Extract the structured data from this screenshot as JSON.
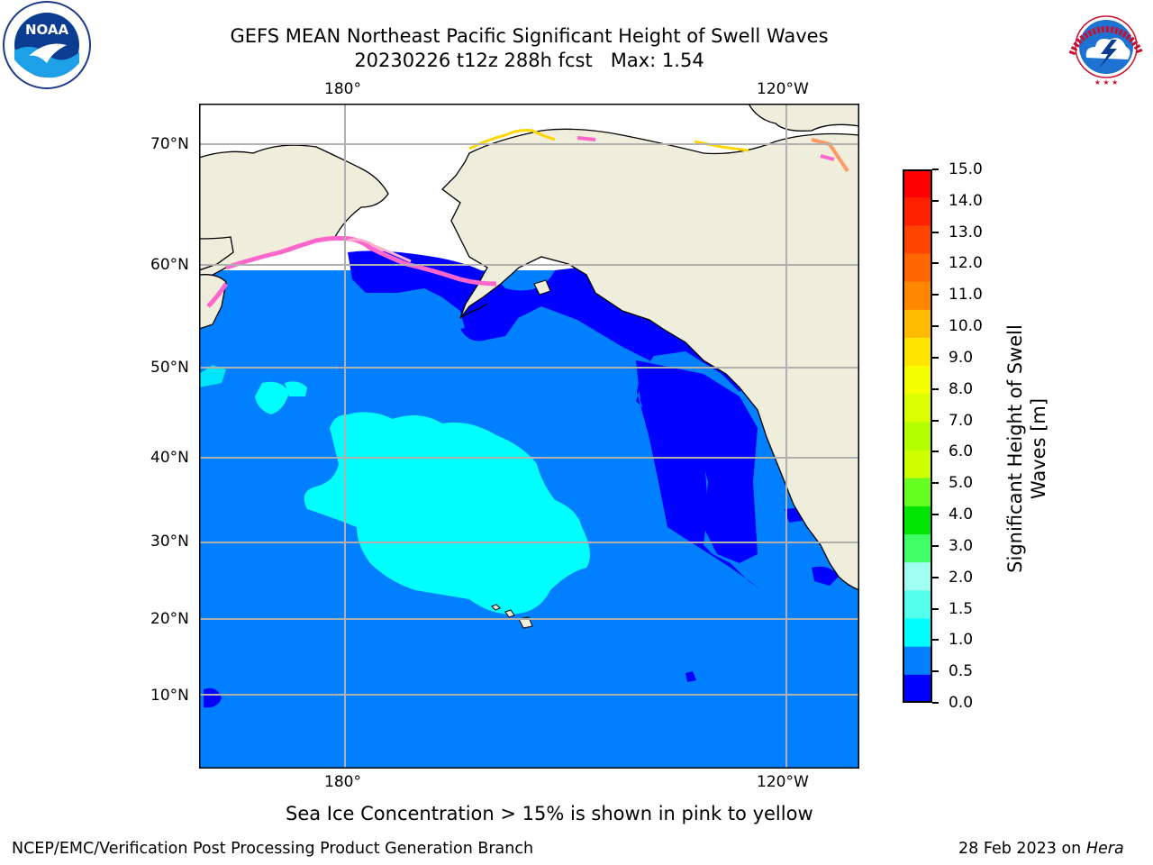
{
  "title": {
    "line1": "GEFS MEAN Northeast Pacific Significant Height of Swell Waves",
    "line2": "20230226 t12z 288h fcst",
    "max": "Max: 1.54"
  },
  "map": {
    "lon_labels_top": [
      "180°",
      "120°W"
    ],
    "lon_labels_bottom": [
      "180°",
      "120°W"
    ],
    "lat_labels": [
      "70°N",
      "60°N",
      "50°N",
      "40°N",
      "30°N",
      "20°N",
      "10°N"
    ],
    "colors": {
      "ocean": "#0080ff",
      "swell_0_05": "#0000ff",
      "swell_1_15": "#00ffff",
      "land": "#efeddc",
      "ice_pink": "#ff66cc",
      "ice_yellow": "#ffd700",
      "grid": "#b0b0b0"
    }
  },
  "colorbar": {
    "title_line1": "Significant Height of Swell",
    "title_line2": "Waves [m]",
    "ticks": [
      "15.0",
      "14.0",
      "13.0",
      "12.0",
      "11.0",
      "10.0",
      "9.0",
      "8.0",
      "7.0",
      "6.0",
      "5.0",
      "4.0",
      "3.0",
      "2.0",
      "1.5",
      "1.0",
      "0.5",
      "0.0"
    ],
    "colors_top_to_bottom": [
      "#ff0000",
      "#ff2000",
      "#ff4400",
      "#ff6600",
      "#ff8800",
      "#ffbb00",
      "#ffe600",
      "#f5ff00",
      "#d9ff00",
      "#b3ff00",
      "#cdff00",
      "#66ff22",
      "#00e600",
      "#40ff66",
      "#9ffff0",
      "#55ffee",
      "#00ffff",
      "#0080ff",
      "#0000ff"
    ]
  },
  "note": "Sea Ice Concentration > 15% is shown in pink to yellow",
  "footer": {
    "left": "NCEP/EMC/Verification Post Processing Product Generation Branch",
    "right_prefix": "28 Feb 2023 on ",
    "right_machine": "Hera"
  },
  "logos": {
    "noaa_text": "NOAA",
    "noaa_ring": "NATIONAL OCEANIC AND ATMOSPHERIC ADMINISTRATION • U.S. DEPARTMENT OF COMMERCE",
    "nws_ring": "NATIONAL WEATHER SERVICE"
  }
}
